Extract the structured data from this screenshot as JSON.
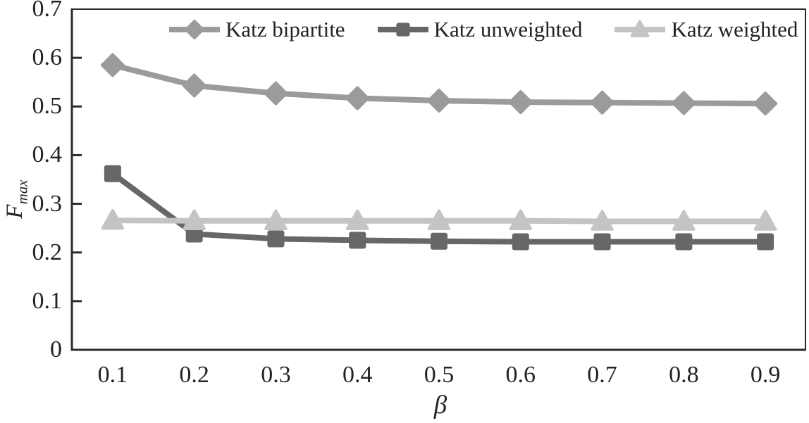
{
  "chart_data": {
    "type": "line",
    "title": "",
    "xlabel": "β",
    "ylabel": "F",
    "ylabel_subscript": "max",
    "x": [
      0.1,
      0.2,
      0.3,
      0.4,
      0.5,
      0.6,
      0.7,
      0.8,
      0.9
    ],
    "xtick_labels": [
      "0.1",
      "0.2",
      "0.3",
      "0.4",
      "0.5",
      "0.6",
      "0.7",
      "0.8",
      "0.9"
    ],
    "yticks": [
      {
        "label": "0.7",
        "value": 0.7
      },
      {
        "label": "0.6",
        "value": 0.6
      },
      {
        "label": "0.5",
        "value": 0.5
      },
      {
        "label": "0.4",
        "value": 0.4
      },
      {
        "label": "0.3",
        "value": 0.3
      },
      {
        "label": "0.2",
        "value": 0.2
      },
      {
        "label": "0.1",
        "value": 0.1
      },
      {
        "label": "0",
        "value": 0
      }
    ],
    "ylim": [
      0,
      0.7
    ],
    "grid": false,
    "legend_position": "top-center-inside",
    "series": [
      {
        "name": "Katz bipartite",
        "marker": "diamond",
        "color": "#9a9b9d",
        "values": [
          0.585,
          0.543,
          0.527,
          0.517,
          0.512,
          0.509,
          0.508,
          0.507,
          0.506
        ]
      },
      {
        "name": "Katz unweighted",
        "marker": "square",
        "color": "#666769",
        "values": [
          0.362,
          0.238,
          0.228,
          0.225,
          0.223,
          0.222,
          0.222,
          0.222,
          0.222
        ]
      },
      {
        "name": "Katz weighted",
        "marker": "triangle",
        "color": "#c3c4c6",
        "values": [
          0.266,
          0.265,
          0.265,
          0.265,
          0.265,
          0.265,
          0.264,
          0.264,
          0.264
        ]
      }
    ]
  },
  "style": {
    "background": "#ffffff",
    "axis_color": "#2b2b2c",
    "text_color": "#232325"
  }
}
